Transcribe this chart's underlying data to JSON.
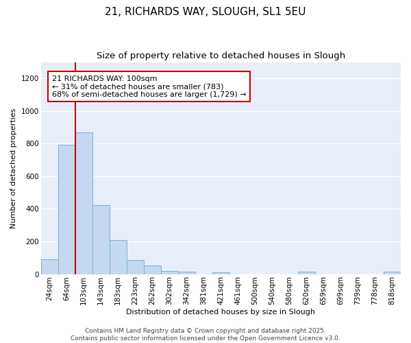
{
  "title_line1": "21, RICHARDS WAY, SLOUGH, SL1 5EU",
  "title_line2": "Size of property relative to detached houses in Slough",
  "xlabel": "Distribution of detached houses by size in Slough",
  "ylabel": "Number of detached properties",
  "bar_labels": [
    "24sqm",
    "64sqm",
    "103sqm",
    "143sqm",
    "183sqm",
    "223sqm",
    "262sqm",
    "302sqm",
    "342sqm",
    "381sqm",
    "421sqm",
    "461sqm",
    "500sqm",
    "540sqm",
    "580sqm",
    "620sqm",
    "659sqm",
    "699sqm",
    "739sqm",
    "778sqm",
    "818sqm"
  ],
  "bar_values": [
    90,
    793,
    867,
    422,
    209,
    87,
    52,
    20,
    14,
    0,
    10,
    0,
    0,
    0,
    0,
    15,
    0,
    0,
    0,
    0,
    14
  ],
  "bar_color": "#c5d8f0",
  "bar_edge_color": "#7bafd4",
  "vline_x_idx": 2,
  "vline_color": "#cc0000",
  "annotation_text": "21 RICHARDS WAY: 100sqm\n← 31% of detached houses are smaller (783)\n68% of semi-detached houses are larger (1,729) →",
  "annotation_box_facecolor": "#ffffff",
  "annotation_box_edgecolor": "#cc0000",
  "ylim": [
    0,
    1300
  ],
  "yticks": [
    0,
    200,
    400,
    600,
    800,
    1000,
    1200
  ],
  "figure_bg": "#ffffff",
  "axes_bg": "#e8eef8",
  "grid_color": "#ffffff",
  "footer_text": "Contains HM Land Registry data © Crown copyright and database right 2025.\nContains public sector information licensed under the Open Government Licence v3.0.",
  "title_fontsize": 11,
  "subtitle_fontsize": 9.5,
  "label_fontsize": 8,
  "tick_fontsize": 7.5,
  "annotation_fontsize": 8,
  "footer_fontsize": 6.5
}
